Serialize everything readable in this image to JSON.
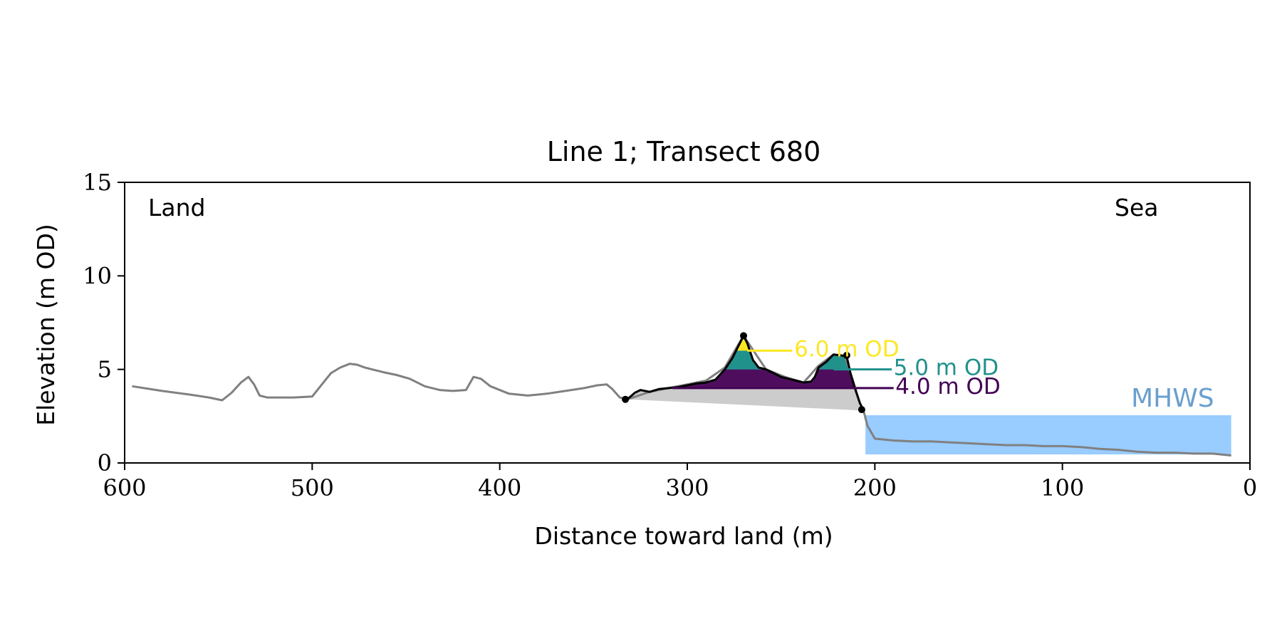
{
  "chart_data": {
    "type": "line",
    "title": "Line 1; Transect 680",
    "xlabel": "Distance toward land (m)",
    "ylabel": "Elevation (m OD)",
    "xlim": [
      600,
      0
    ],
    "ylim": [
      0,
      15
    ],
    "x_inverted": true,
    "grid": false,
    "xticks": [
      600,
      500,
      400,
      300,
      200,
      100,
      0
    ],
    "yticks": [
      0,
      5,
      10,
      15
    ],
    "annotations": {
      "land": "Land",
      "sea": "Sea"
    },
    "colors": {
      "profile": "#808080",
      "dune_profile": "#000000",
      "base": "#cccccc",
      "level_4": "#440154",
      "level_5": "#21918c",
      "level_6": "#fde725",
      "mhws": "#99ccff",
      "mhws_label": "#6a9fcf"
    },
    "profile": {
      "x": [
        596,
        580,
        565,
        555,
        548,
        543,
        538,
        534,
        531,
        528,
        524,
        520,
        510,
        500,
        494,
        490,
        485,
        480,
        476,
        472,
        468,
        462,
        455,
        448,
        440,
        432,
        425,
        418,
        414,
        410,
        405,
        395,
        385,
        375,
        365,
        355,
        348,
        343,
        340,
        336,
        332,
        320,
        310,
        300,
        290,
        280,
        270,
        258,
        248,
        238,
        230,
        222,
        216,
        212,
        208,
        206,
        204,
        200,
        190,
        180,
        170,
        160,
        150,
        140,
        130,
        120,
        110,
        100,
        90,
        80,
        70,
        60,
        50,
        40,
        30,
        20,
        10
      ],
      "y": [
        4.1,
        3.85,
        3.65,
        3.5,
        3.35,
        3.75,
        4.3,
        4.6,
        4.2,
        3.6,
        3.5,
        3.5,
        3.5,
        3.55,
        4.3,
        4.8,
        5.1,
        5.3,
        5.25,
        5.1,
        5.0,
        4.85,
        4.7,
        4.5,
        4.1,
        3.9,
        3.85,
        3.9,
        4.6,
        4.5,
        4.1,
        3.7,
        3.6,
        3.7,
        3.85,
        4.0,
        4.15,
        4.2,
        3.95,
        3.5,
        3.4,
        3.8,
        4.0,
        4.2,
        4.4,
        5.1,
        6.8,
        5.0,
        4.6,
        4.3,
        5.2,
        5.8,
        5.7,
        4.5,
        3.2,
        2.8,
        2.0,
        1.3,
        1.2,
        1.15,
        1.15,
        1.1,
        1.05,
        1.0,
        0.95,
        0.95,
        0.9,
        0.9,
        0.85,
        0.75,
        0.7,
        0.6,
        0.55,
        0.55,
        0.5,
        0.5,
        0.4
      ]
    },
    "dune_profile": {
      "x": [
        332,
        328,
        325,
        320,
        315,
        310,
        305,
        300,
        295,
        290,
        285,
        280,
        276,
        272,
        270,
        268,
        265,
        262,
        258,
        254,
        250,
        246,
        242,
        238,
        234,
        232,
        230,
        226,
        222,
        218,
        215,
        213,
        210,
        208,
        206
      ],
      "y": [
        3.4,
        3.75,
        3.9,
        3.8,
        3.95,
        4.0,
        4.05,
        4.15,
        4.25,
        4.3,
        4.45,
        5.0,
        5.6,
        6.4,
        6.8,
        6.4,
        5.5,
        5.1,
        5.0,
        4.8,
        4.6,
        4.5,
        4.4,
        4.3,
        4.35,
        4.6,
        5.1,
        5.4,
        5.8,
        5.75,
        5.7,
        4.8,
        3.8,
        3.2,
        2.8
      ]
    },
    "dune_points": [
      {
        "x": 333,
        "y": 3.4
      },
      {
        "x": 270,
        "y": 6.8
      },
      {
        "x": 215,
        "y": 5.75
      },
      {
        "x": 207,
        "y": 2.85
      }
    ],
    "levels": [
      {
        "label": "4.0 m OD",
        "value": 4.0,
        "line_from": 308,
        "line_to": 190,
        "text_x": 189
      },
      {
        "label": "5.0 m OD",
        "value": 5.0,
        "line_from": 222,
        "line_to": 191,
        "text_x": 190
      },
      {
        "label": "6.0 m OD",
        "value": 6.0,
        "line_from": 268,
        "line_to": 244,
        "text_x": 243
      }
    ],
    "mhws": {
      "label": "MHWS",
      "value": 2.55,
      "x_from": 205,
      "x_to": 10
    }
  }
}
